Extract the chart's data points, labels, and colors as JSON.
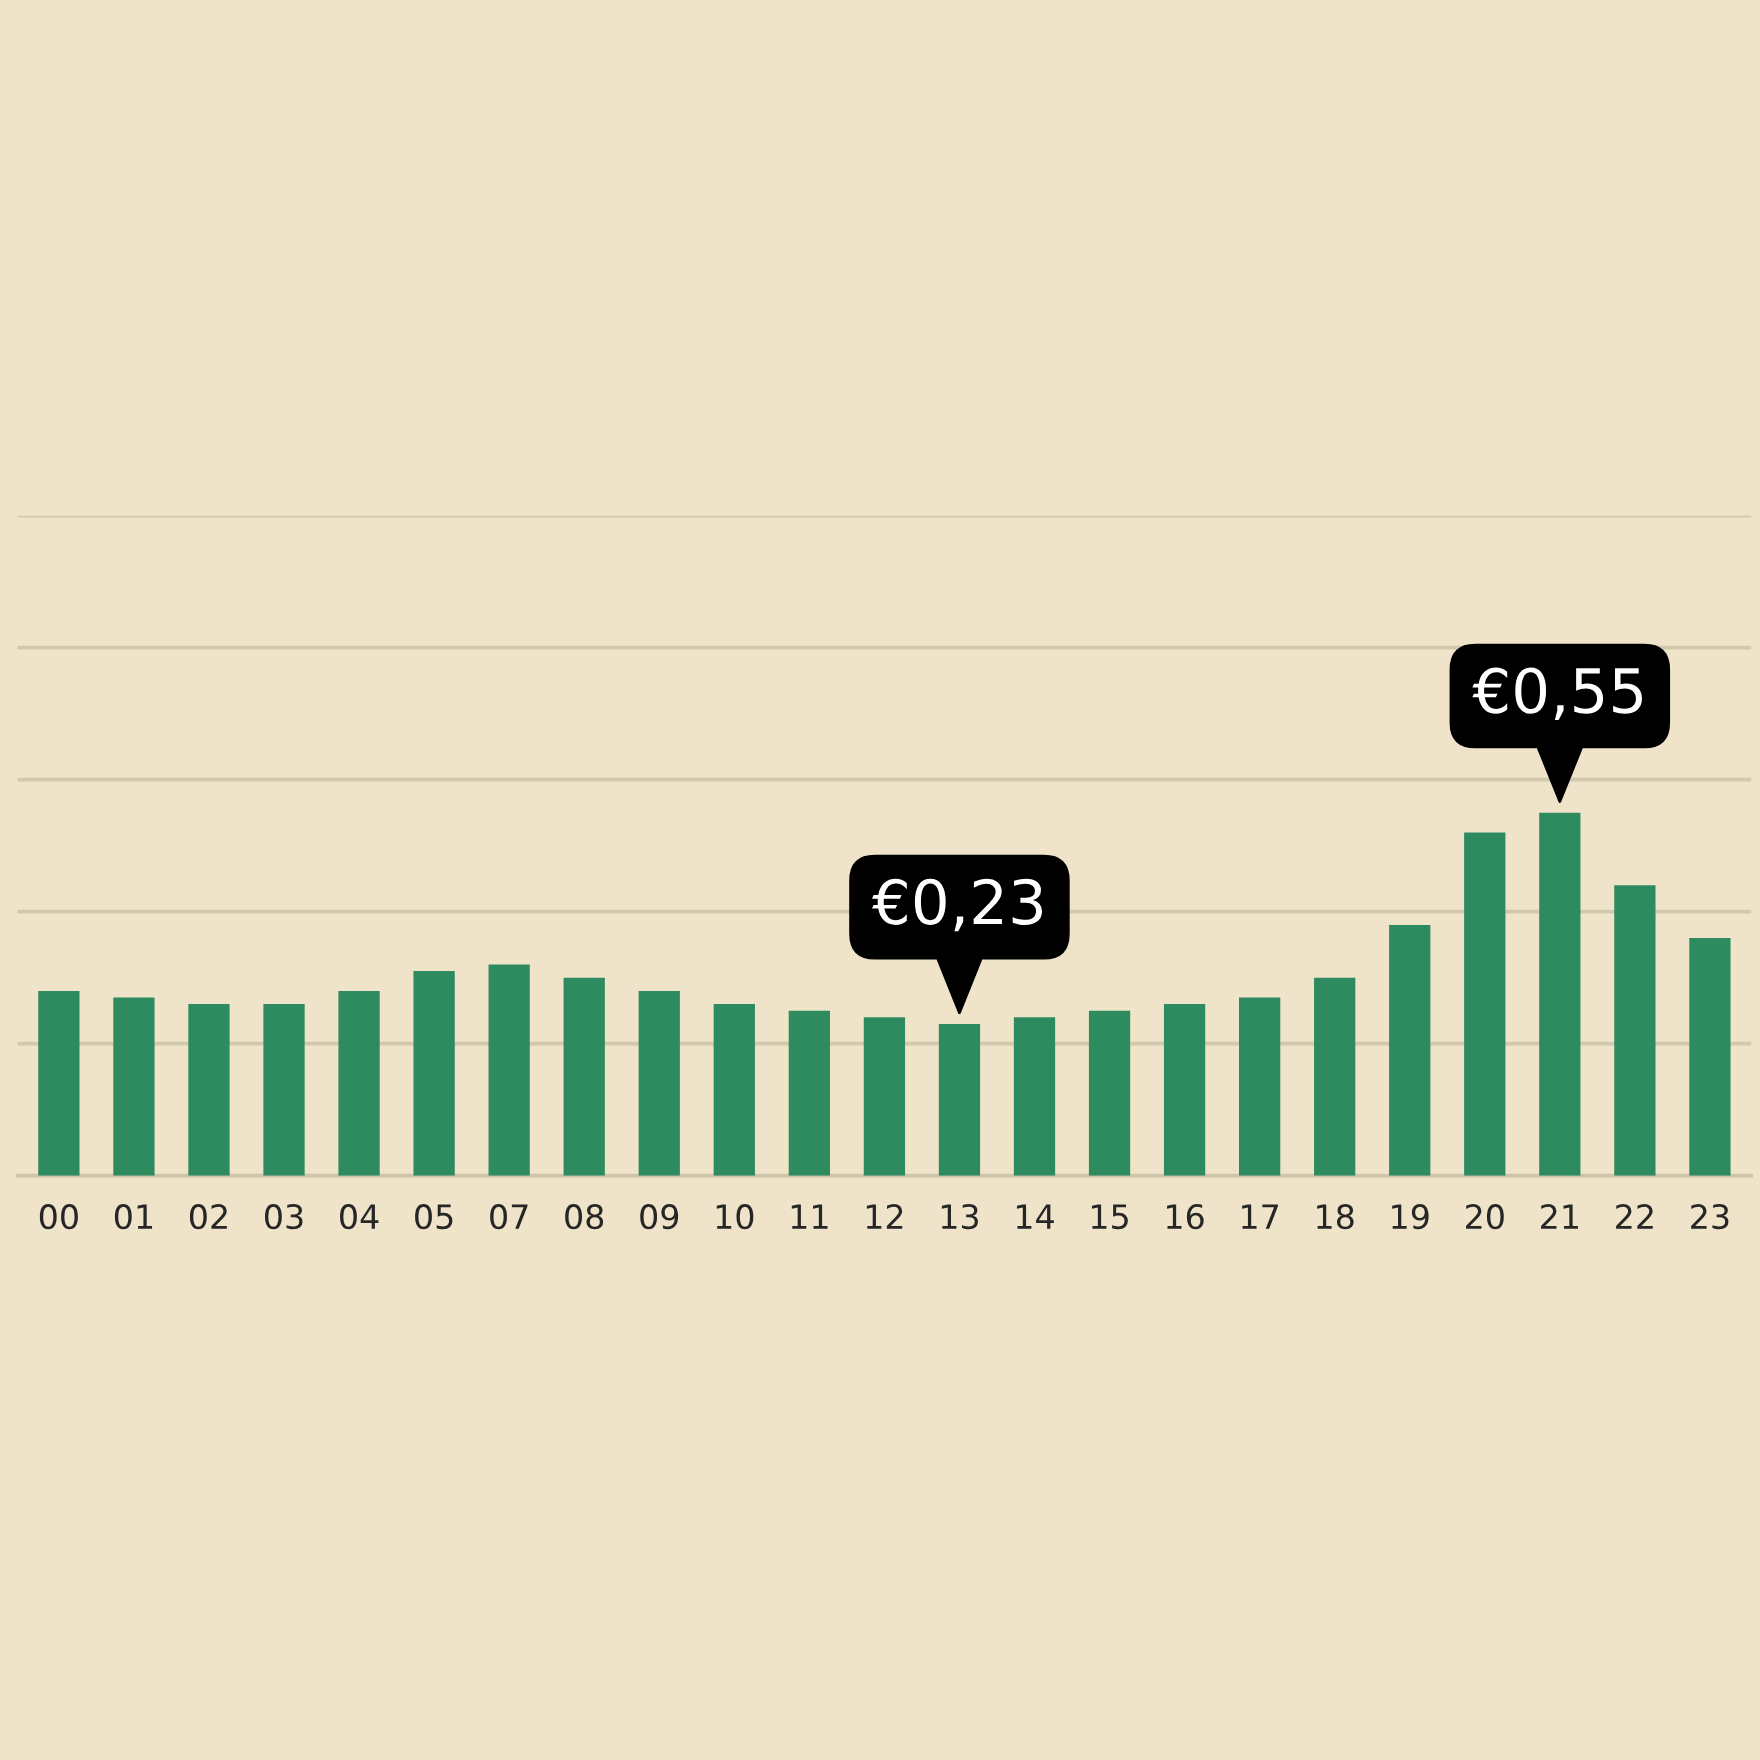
{
  "chart_data": {
    "type": "bar",
    "grid": "y",
    "color": "#2e8a5f",
    "tick_labels": "x",
    "ylim": [
      0,
      1.0
    ],
    "yticks": [
      {
        "value": 0.2,
        "label": null
      },
      {
        "value": 0.4,
        "label": null
      },
      {
        "value": 0.6,
        "label": null
      },
      {
        "value": 0.8,
        "label": null
      },
      {
        "value": 1.0,
        "label": null
      }
    ],
    "categories": [
      "00",
      "01",
      "02",
      "03",
      "04",
      "05",
      "07",
      "08",
      "09",
      "10",
      "11",
      "12",
      "13",
      "14",
      "15",
      "16",
      "17",
      "18",
      "19",
      "20",
      "21",
      "22",
      "23"
    ],
    "values": [
      0.28,
      0.27,
      0.26,
      0.26,
      0.28,
      0.31,
      0.32,
      0.3,
      0.28,
      0.26,
      0.25,
      0.24,
      0.23,
      0.24,
      0.25,
      0.26,
      0.27,
      0.3,
      0.38,
      0.52,
      0.55,
      0.44,
      0.36
    ],
    "value_labels": [
      null,
      null,
      null,
      null,
      null,
      null,
      null,
      null,
      null,
      null,
      null,
      null,
      "€0,23",
      null,
      null,
      null,
      null,
      null,
      null,
      null,
      "€0,55",
      null,
      null
    ]
  }
}
